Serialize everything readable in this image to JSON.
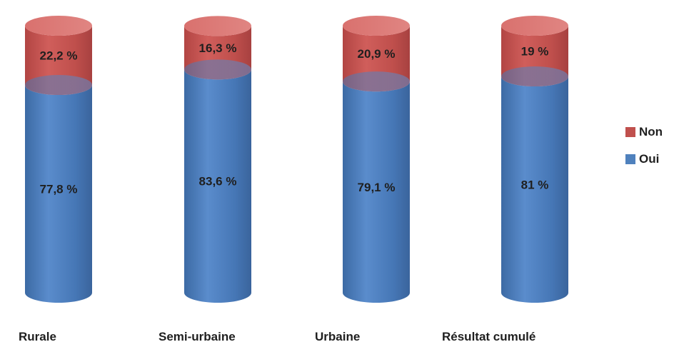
{
  "chart_data": {
    "type": "bar",
    "stacked": true,
    "style": "3d-cylinder",
    "categories": [
      "Rurale",
      "Semi-urbaine",
      "Urbaine",
      "Résultat cumulé"
    ],
    "series": [
      {
        "name": "Oui",
        "color": "#4F81BD",
        "values": [
          77.8,
          83.6,
          79.1,
          81
        ],
        "labels": [
          "77,8 %",
          "83,6 %",
          "79,1 %",
          "81 %"
        ]
      },
      {
        "name": "Non",
        "color": "#C0504D",
        "values": [
          22.2,
          16.3,
          20.9,
          19
        ],
        "labels": [
          "22,2 %",
          "16,3 %",
          "20,9 %",
          "19 %"
        ]
      }
    ],
    "title": "",
    "xlabel": "",
    "ylabel": "",
    "ylim": [
      0,
      100
    ],
    "grid": false,
    "legend_position": "right",
    "legend_order": [
      "Non",
      "Oui"
    ]
  }
}
